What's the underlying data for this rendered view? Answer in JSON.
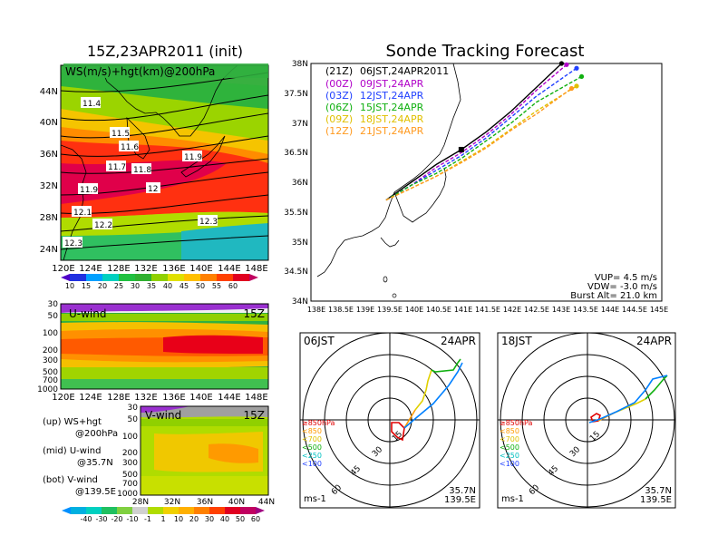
{
  "left_title": "15Z,23APR2011 (init)",
  "right_title": "Sonde Tracking Forecast",
  "map_panel": {
    "label": "WS(m/s)+hgt(km)@200hPa",
    "lat_ticks": [
      "44N",
      "40N",
      "36N",
      "32N",
      "28N",
      "24N"
    ],
    "lon_ticks": [
      "120E",
      "124E",
      "128E",
      "132E",
      "136E",
      "140E",
      "144E",
      "148E"
    ],
    "contour_labels": [
      "11.4",
      "11.5",
      "11.6",
      "11.7",
      "11.8",
      "11.9",
      "11.9",
      "12",
      "12.1",
      "12.2",
      "12.3",
      "12.3"
    ],
    "colorbar_ticks": [
      "10",
      "15",
      "20",
      "25",
      "30",
      "35",
      "40",
      "45",
      "50",
      "55",
      "60"
    ]
  },
  "u_panel": {
    "label": "U-wind",
    "time": "15Z",
    "p_ticks": [
      "30",
      "50",
      "100",
      "200",
      "300",
      "500",
      "700",
      "1000"
    ],
    "lon_ticks": [
      "120E",
      "124E",
      "128E",
      "132E",
      "136E",
      "140E",
      "144E",
      "148E"
    ]
  },
  "v_panel": {
    "label": "V-wind",
    "time": "15Z",
    "p_ticks": [
      "30",
      "50",
      "100",
      "200",
      "300",
      "500",
      "700",
      "1000"
    ],
    "lat_ticks": [
      "28N",
      "32N",
      "36N",
      "40N",
      "44N"
    ],
    "colorbar_ticks": [
      "-40",
      "-30",
      "-20",
      "-10",
      "-1",
      "1",
      "10",
      "20",
      "30",
      "40",
      "50",
      "60"
    ]
  },
  "legend_notes": [
    {
      "line1": "(up) WS+hgt",
      "line2": "@200hPa"
    },
    {
      "line1": "(mid) U-wind",
      "line2": "@35.7N"
    },
    {
      "line1": "(bot) V-wind",
      "line2": "@139.5E"
    }
  ],
  "track_map": {
    "lat_ticks": [
      "38N",
      "37.5N",
      "37N",
      "36.5N",
      "36N",
      "35.5N",
      "35N",
      "34.5N",
      "34N"
    ],
    "lon_ticks": [
      "138E",
      "138.5E",
      "139E",
      "139.5E",
      "140E",
      "140.5E",
      "141E",
      "141.5E",
      "142E",
      "142.5E",
      "143E",
      "143.5E",
      "144E",
      "144.5E",
      "145E"
    ],
    "launches": [
      {
        "z": "(21Z)",
        "jst": "06JST,24APR2011",
        "color": "#000000"
      },
      {
        "z": "(00Z)",
        "jst": "09JST,24APR",
        "color": "#b000c8"
      },
      {
        "z": "(03Z)",
        "jst": "12JST,24APR",
        "color": "#2040ff"
      },
      {
        "z": "(06Z)",
        "jst": "15JST,24APR",
        "color": "#10b010"
      },
      {
        "z": "(09Z)",
        "jst": "18JST,24APR",
        "color": "#e0c000"
      },
      {
        "z": "(12Z)",
        "jst": "21JST,24APR",
        "color": "#ff9a20"
      }
    ],
    "vup": "VUP=  4.5  m/s",
    "vdw": "VDW= -3.0  m/s",
    "burst": "Burst Alt= 21.0  km"
  },
  "hodo_left": {
    "time": "06JST",
    "date": "24APR",
    "ring_labels": [
      "15",
      "30",
      "45",
      "60"
    ],
    "levels": [
      "≥850hPa",
      "<850",
      "<700",
      "<500",
      "<250",
      "<100"
    ],
    "unit": "ms-1",
    "lat": "35.7N",
    "lon": "139.5E"
  },
  "hodo_right": {
    "time": "18JST",
    "date": "24APR",
    "ring_labels": [
      "15",
      "30",
      "45",
      "60"
    ],
    "levels": [
      "≥850hPa",
      "<850",
      "<700",
      "<500",
      "<250",
      "<100"
    ],
    "unit": "ms-1",
    "lat": "35.7N",
    "lon": "139.5E"
  },
  "chart_data": [
    {
      "type": "heatmap",
      "title": "WS(m/s)+hgt(km)@200hPa",
      "x_range": [
        120,
        150
      ],
      "y_range": [
        22,
        48
      ],
      "colorbar": [
        10,
        15,
        20,
        25,
        30,
        35,
        40,
        45,
        50,
        55,
        60
      ]
    },
    {
      "type": "heatmap",
      "title": "U-wind",
      "x_range": [
        120,
        150
      ],
      "y_levels_hPa": [
        30,
        50,
        100,
        200,
        300,
        500,
        700,
        1000
      ]
    },
    {
      "type": "heatmap",
      "title": "V-wind",
      "x_range": [
        28,
        44
      ],
      "y_levels_hPa": [
        30,
        50,
        100,
        200,
        300,
        500,
        700,
        1000
      ],
      "colorbar": [
        -40,
        -30,
        -20,
        -10,
        -1,
        1,
        10,
        20,
        30,
        40,
        50,
        60
      ]
    },
    {
      "type": "line",
      "title": "Sonde Tracking Forecast",
      "xlim": [
        138,
        145
      ],
      "ylim": [
        34,
        38
      ],
      "series": [
        {
          "name": "06JST,24APR2011",
          "x": [
            139.5,
            140.0,
            140.5,
            141.0,
            141.5,
            142.0,
            142.5,
            143.0
          ],
          "y": [
            35.7,
            36.0,
            36.3,
            36.55,
            36.85,
            37.2,
            37.6,
            38.0
          ]
        },
        {
          "name": "09JST,24APR",
          "x": [
            139.5,
            140.0,
            140.5,
            141.0,
            141.5,
            142.0,
            142.5,
            143.1
          ],
          "y": [
            35.7,
            35.95,
            36.25,
            36.5,
            36.8,
            37.15,
            37.55,
            37.98
          ]
        },
        {
          "name": "12JST,24APR",
          "x": [
            139.5,
            140.0,
            140.5,
            141.0,
            141.5,
            142.0,
            142.5,
            143.3
          ],
          "y": [
            35.7,
            35.95,
            36.2,
            36.45,
            36.75,
            37.1,
            37.45,
            37.92
          ]
        },
        {
          "name": "15JST,24APR",
          "x": [
            139.5,
            140.0,
            140.5,
            141.0,
            141.5,
            142.0,
            142.5,
            143.4
          ],
          "y": [
            35.7,
            35.95,
            36.15,
            36.4,
            36.7,
            37.0,
            37.35,
            37.78
          ]
        },
        {
          "name": "18JST,24APR",
          "x": [
            139.5,
            140.0,
            140.5,
            141.0,
            141.5,
            142.0,
            142.5,
            143.3
          ],
          "y": [
            35.7,
            35.9,
            36.1,
            36.35,
            36.6,
            36.9,
            37.2,
            37.62
          ]
        },
        {
          "name": "21JST,24APR",
          "x": [
            139.5,
            140.0,
            140.5,
            141.0,
            141.5,
            142.0,
            142.5,
            143.2
          ],
          "y": [
            35.7,
            35.9,
            36.1,
            36.33,
            36.58,
            36.88,
            37.15,
            37.58
          ]
        }
      ]
    }
  ]
}
